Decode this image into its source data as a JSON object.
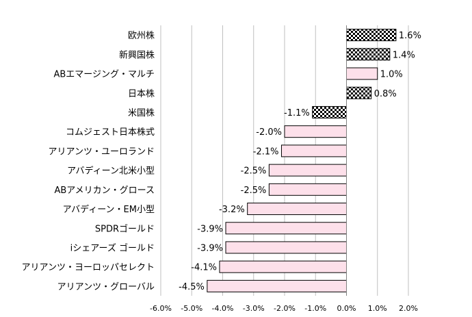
{
  "chart_data": {
    "type": "bar",
    "orientation": "horizontal",
    "categories": [
      "欧州株",
      "新興国株",
      "ABエマージング・マルチ",
      "日本株",
      "米国株",
      "コムジェスト日本株式",
      "アリアンツ・ユーロランド",
      "アバディーン北米小型",
      "ABアメリカン・グロース",
      "アバディーン・EM小型",
      "SPDRゴールド",
      "iシェアーズ ゴールド",
      "アリアンツ・ヨーロッパセレクト",
      "アリアンツ・グローバル"
    ],
    "values": [
      1.6,
      1.4,
      1.0,
      0.8,
      -1.1,
      -2.0,
      -2.1,
      -2.5,
      -2.5,
      -3.2,
      -3.9,
      -3.9,
      -4.1,
      -4.5
    ],
    "value_labels": [
      "1.6%",
      "1.4%",
      "1.0%",
      "0.8%",
      "-1.1%",
      "-2.0%",
      "-2.1%",
      "-2.5%",
      "-2.5%",
      "-3.2%",
      "-3.9%",
      "-3.9%",
      "-4.1%",
      "-4.5%"
    ],
    "fill_styles": [
      "checker",
      "checker",
      "pink",
      "checker",
      "checker",
      "pink",
      "pink",
      "pink",
      "pink",
      "pink",
      "pink",
      "pink",
      "pink",
      "pink"
    ],
    "x_ticks": [
      "-6.0%",
      "-5.0%",
      "-4.0%",
      "-3.0%",
      "-2.0%",
      "-1.0%",
      "0.0%",
      "1.0%",
      "2.0%"
    ],
    "x_tick_values": [
      -6,
      -5,
      -4,
      -3,
      -2,
      -1,
      0,
      1,
      2
    ],
    "xlim": [
      -6,
      2
    ],
    "grid": true,
    "title": "",
    "xlabel": "",
    "ylabel": "",
    "colors": {
      "pink": "#fde0ea",
      "checker_dark": "#000000",
      "checker_light": "#ffffff",
      "border": "#000000",
      "grid": "#bfbfbf"
    }
  }
}
